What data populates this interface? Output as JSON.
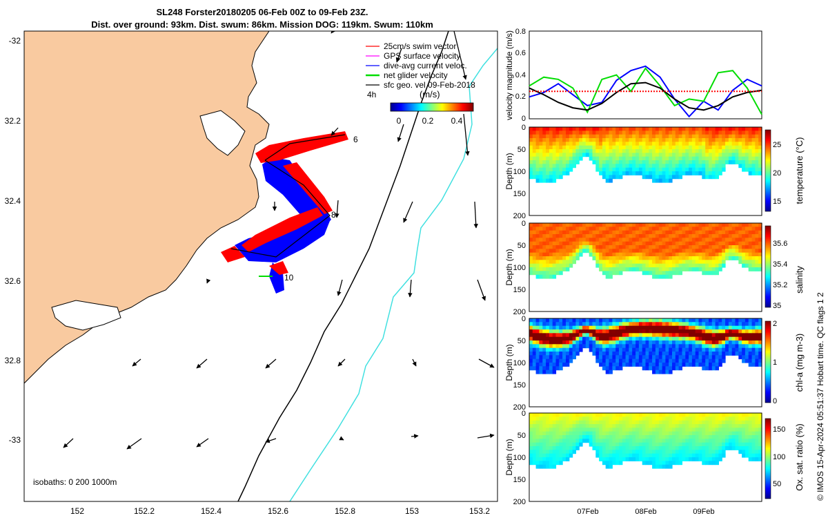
{
  "figure": {
    "title_line1": "SL248 Forster20180205 06-Feb 00Z to 09-Feb 23Z.",
    "title_line2": "Dist. over ground: 93km. Dist. swum: 86km. Mission DOG: 119km. Swum: 110km",
    "copyright": "© IMOS 15-Apr-2024 05:51:37 Hobart time. QC flags 1  2"
  },
  "map": {
    "x_ticks": [
      "152",
      "152.2",
      "152.4",
      "152.6",
      "152.8",
      "153",
      "153.2"
    ],
    "y_ticks": [
      "-32",
      "32.2",
      "32.4",
      "32.6",
      "32.8",
      "-33"
    ],
    "isobaths_label": "isobaths: 0   200  1000m",
    "legend": [
      {
        "label": "25cm/s swim vector",
        "color": "#ff0000"
      },
      {
        "label": "GPS surface velocity",
        "color": "#ff00ff"
      },
      {
        "label": "dive-avg current veloc.",
        "color": "#0000ff"
      },
      {
        "label": "net glider velocity",
        "color": "#00dd00"
      },
      {
        "label": "sfc geo. vel 09-Feb-2018",
        "color": "#000000"
      }
    ],
    "legend_prefix": "4h",
    "colorbar_title": "(m/s)",
    "colorbar_ticks": [
      "0",
      "0.2",
      "0.4"
    ],
    "day_labels": [
      "6",
      "8",
      "10"
    ],
    "land_color": "#f9caa0",
    "isobath_200_color": "#000000",
    "isobath_1000_color": "#40e0e0"
  },
  "chart_data": [
    {
      "type": "line",
      "ylabel": "velocity magnitude (m/s)",
      "ylim": [
        0,
        0.8
      ],
      "y_ticks": [
        "0",
        "0.2",
        "0.4",
        "0.6",
        "0.8"
      ],
      "x_ticks": [
        "07Feb",
        "08Feb",
        "09Feb"
      ],
      "x": [
        0,
        0.25,
        0.5,
        0.75,
        1.0,
        1.25,
        1.5,
        1.75,
        2.0,
        2.25,
        2.5,
        2.75,
        3.0,
        3.25,
        3.5,
        3.75,
        4.0
      ],
      "series": [
        {
          "color": "#0000ff",
          "values": [
            0.2,
            0.24,
            0.32,
            0.22,
            0.12,
            0.15,
            0.35,
            0.44,
            0.48,
            0.38,
            0.18,
            0.02,
            0.16,
            0.08,
            0.26,
            0.36,
            0.3
          ]
        },
        {
          "color": "#00dd00",
          "values": [
            0.3,
            0.38,
            0.36,
            0.28,
            0.06,
            0.36,
            0.4,
            0.25,
            0.46,
            0.3,
            0.12,
            0.18,
            0.16,
            0.42,
            0.44,
            0.28,
            0.04
          ]
        },
        {
          "color": "#000000",
          "values": [
            0.28,
            0.22,
            0.15,
            0.1,
            0.08,
            0.14,
            0.24,
            0.32,
            0.33,
            0.28,
            0.18,
            0.1,
            0.08,
            0.12,
            0.2,
            0.24,
            0.26
          ]
        },
        {
          "color": "#ff0000",
          "values": [
            0.25,
            0.25,
            0.25,
            0.25,
            0.25,
            0.25,
            0.25,
            0.25,
            0.25,
            0.25,
            0.25,
            0.25,
            0.25,
            0.25,
            0.25,
            0.25,
            0.25
          ]
        }
      ]
    },
    {
      "type": "heatmap",
      "variable": "temperature",
      "ylabel": "Depth (m)",
      "ylim": [
        0,
        200
      ],
      "y_ticks": [
        "0",
        "50",
        "100",
        "150",
        "200"
      ],
      "colorbar_label": "temperature (°C)",
      "colorbar_ticks": [
        "25",
        "20",
        "15"
      ],
      "clim": [
        13,
        27
      ]
    },
    {
      "type": "heatmap",
      "variable": "salinity",
      "ylabel": "Depth (m)",
      "ylim": [
        0,
        200
      ],
      "y_ticks": [
        "0",
        "50",
        "100",
        "150",
        "200"
      ],
      "colorbar_label": "salinity",
      "colorbar_ticks": [
        "35.6",
        "35.4",
        "35.2",
        "35"
      ],
      "clim": [
        35,
        35.7
      ]
    },
    {
      "type": "heatmap",
      "variable": "chl-a",
      "ylabel": "Depth (m)",
      "ylim": [
        0,
        200
      ],
      "y_ticks": [
        "0",
        "50",
        "100",
        "150",
        "200"
      ],
      "colorbar_label": "chl-a (mg m-3)",
      "colorbar_ticks": [
        "2",
        "1",
        "0"
      ],
      "clim": [
        0,
        2
      ]
    },
    {
      "type": "heatmap",
      "variable": "Ox. sat. ratio",
      "ylabel": "Depth (m)",
      "ylim": [
        0,
        200
      ],
      "y_ticks": [
        "0",
        "50",
        "100",
        "150",
        "200"
      ],
      "colorbar_label": "Ox. sat. ratio (%)",
      "colorbar_ticks": [
        "150",
        "100",
        "50"
      ],
      "clim": [
        25,
        175
      ],
      "x_ticks": [
        "07Feb",
        "08Feb",
        "09Feb"
      ]
    }
  ]
}
